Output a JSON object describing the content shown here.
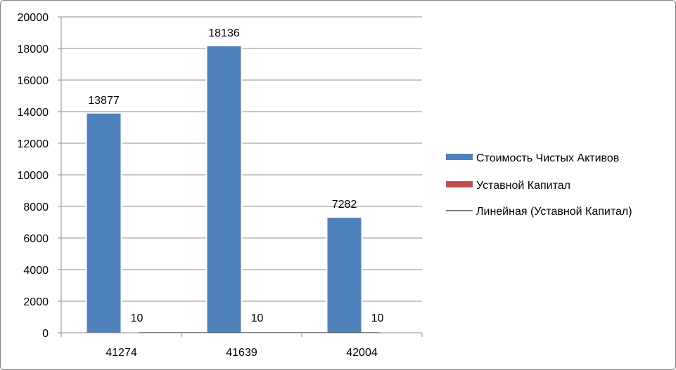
{
  "chart_data": {
    "type": "bar",
    "categories": [
      "41274",
      "41639",
      "42004"
    ],
    "series": [
      {
        "name": "Стоимость Чистых Активов",
        "values": [
          13877,
          18136,
          7282
        ],
        "color": "#4f81bd"
      },
      {
        "name": "Уставной Капитал",
        "values": [
          10,
          10,
          10
        ],
        "color": "#c0504d"
      }
    ],
    "trendline": {
      "name": "Линейная (Уставной Капитал)",
      "series": "Уставной Капитал",
      "color": "#000000"
    },
    "ylim": [
      0,
      20000
    ],
    "ytick_step": 2000,
    "data_labels": true,
    "grid": true,
    "legend_position": "right",
    "title": "",
    "xlabel": "",
    "ylabel": ""
  }
}
